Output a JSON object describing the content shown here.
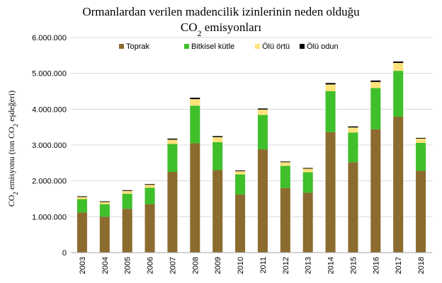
{
  "chart_data": {
    "type": "bar",
    "stacked": true,
    "title_line1": "Ormanlardan verilen madencilik izinlerinin  neden olduğu",
    "title_line2_main": "CO",
    "title_line2_sub": "2",
    "title_line2_rest": " emisyonları",
    "ylabel_parts": [
      "CO",
      "2",
      " emisyonu (ton CO",
      "2",
      " eşdeğeri)"
    ],
    "xlabel": "",
    "ylim": [
      0,
      6000000
    ],
    "yticks": [
      0,
      1000000,
      2000000,
      3000000,
      4000000,
      5000000,
      6000000
    ],
    "ytick_labels": [
      "0",
      "1.000.000",
      "2.000.000",
      "3.000.000",
      "4.000.000",
      "5.000.000",
      "6.000.000"
    ],
    "grid": true,
    "legend_position": "top",
    "categories": [
      "2003",
      "2004",
      "2005",
      "2006",
      "2007",
      "2008",
      "2009",
      "2010",
      "2011",
      "2012",
      "2013",
      "2014",
      "2015",
      "2016",
      "2017",
      "2018"
    ],
    "series": [
      {
        "name": "Toprak",
        "color": "#8c6b2f",
        "values": [
          1120000,
          1000000,
          1220000,
          1350000,
          2250000,
          3050000,
          2300000,
          1620000,
          2880000,
          1800000,
          1670000,
          3360000,
          2520000,
          3440000,
          3790000,
          2280000
        ]
      },
      {
        "name": "Bitkisel kütle",
        "color": "#3fbf2a",
        "values": [
          370000,
          350000,
          420000,
          460000,
          780000,
          1050000,
          780000,
          560000,
          960000,
          620000,
          570000,
          1140000,
          830000,
          1150000,
          1280000,
          780000
        ]
      },
      {
        "name": "Ölü örtü",
        "color": "#ffe27a",
        "values": [
          60000,
          60000,
          80000,
          80000,
          120000,
          180000,
          140000,
          90000,
          150000,
          100000,
          100000,
          190000,
          140000,
          170000,
          220000,
          120000
        ]
      },
      {
        "name": "Ölü odun",
        "color": "#000000",
        "values": [
          20000,
          20000,
          20000,
          20000,
          30000,
          40000,
          30000,
          20000,
          30000,
          20000,
          20000,
          40000,
          30000,
          40000,
          40000,
          20000
        ]
      }
    ]
  }
}
